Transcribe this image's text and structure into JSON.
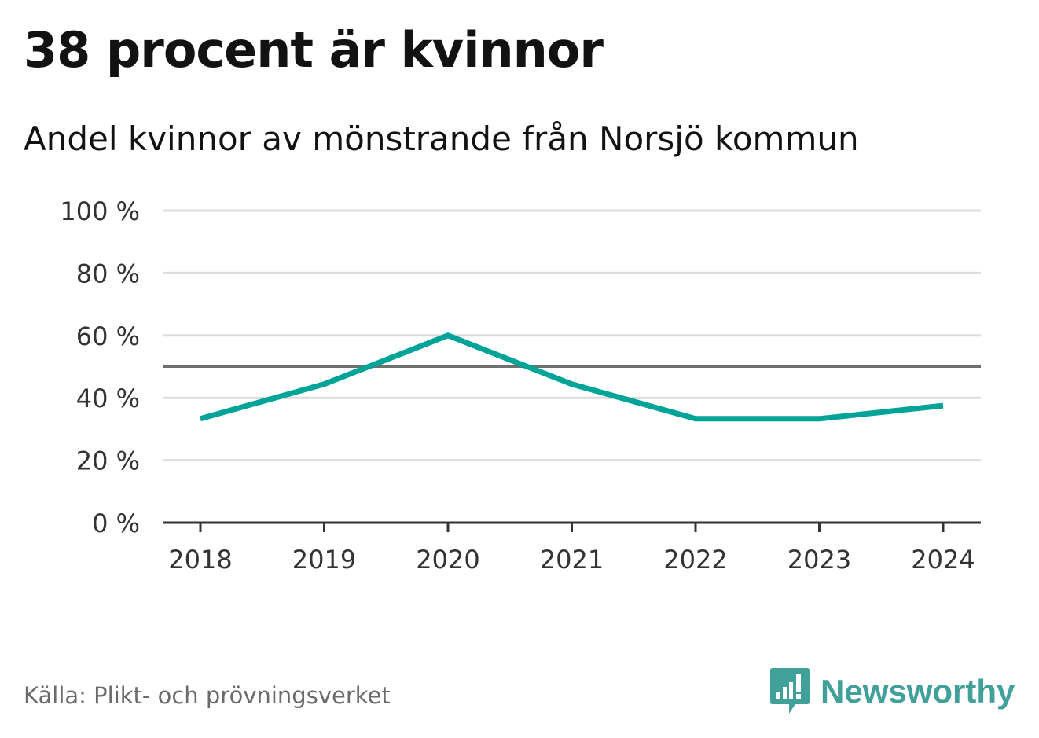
{
  "title": "38 procent är kvinnor",
  "subtitle": "Andel kvinnor av mönstrande från Norsjö kommun",
  "source": "Källa: Plikt- och prövningsverket",
  "brand": {
    "name": "Newsworthy",
    "icon": "newsworthy-logo-icon",
    "color": "#41a09a"
  },
  "chart_data": {
    "type": "line",
    "x": [
      "2018",
      "2019",
      "2020",
      "2021",
      "2022",
      "2023",
      "2024"
    ],
    "series": [
      {
        "values": [
          33.3,
          44.4,
          60.0,
          44.4,
          33.3,
          33.3,
          37.5
        ],
        "color": "#00a398"
      }
    ],
    "y_ticks": [
      {
        "value": 0,
        "label": "0 %"
      },
      {
        "value": 20,
        "label": "20 %"
      },
      {
        "value": 40,
        "label": "40 %"
      },
      {
        "value": 60,
        "label": "60 %"
      },
      {
        "value": 80,
        "label": "80 %"
      },
      {
        "value": 100,
        "label": "100 %"
      }
    ],
    "ylim": [
      0,
      100
    ],
    "reference_line": 50,
    "grid": true,
    "legend": "none"
  }
}
